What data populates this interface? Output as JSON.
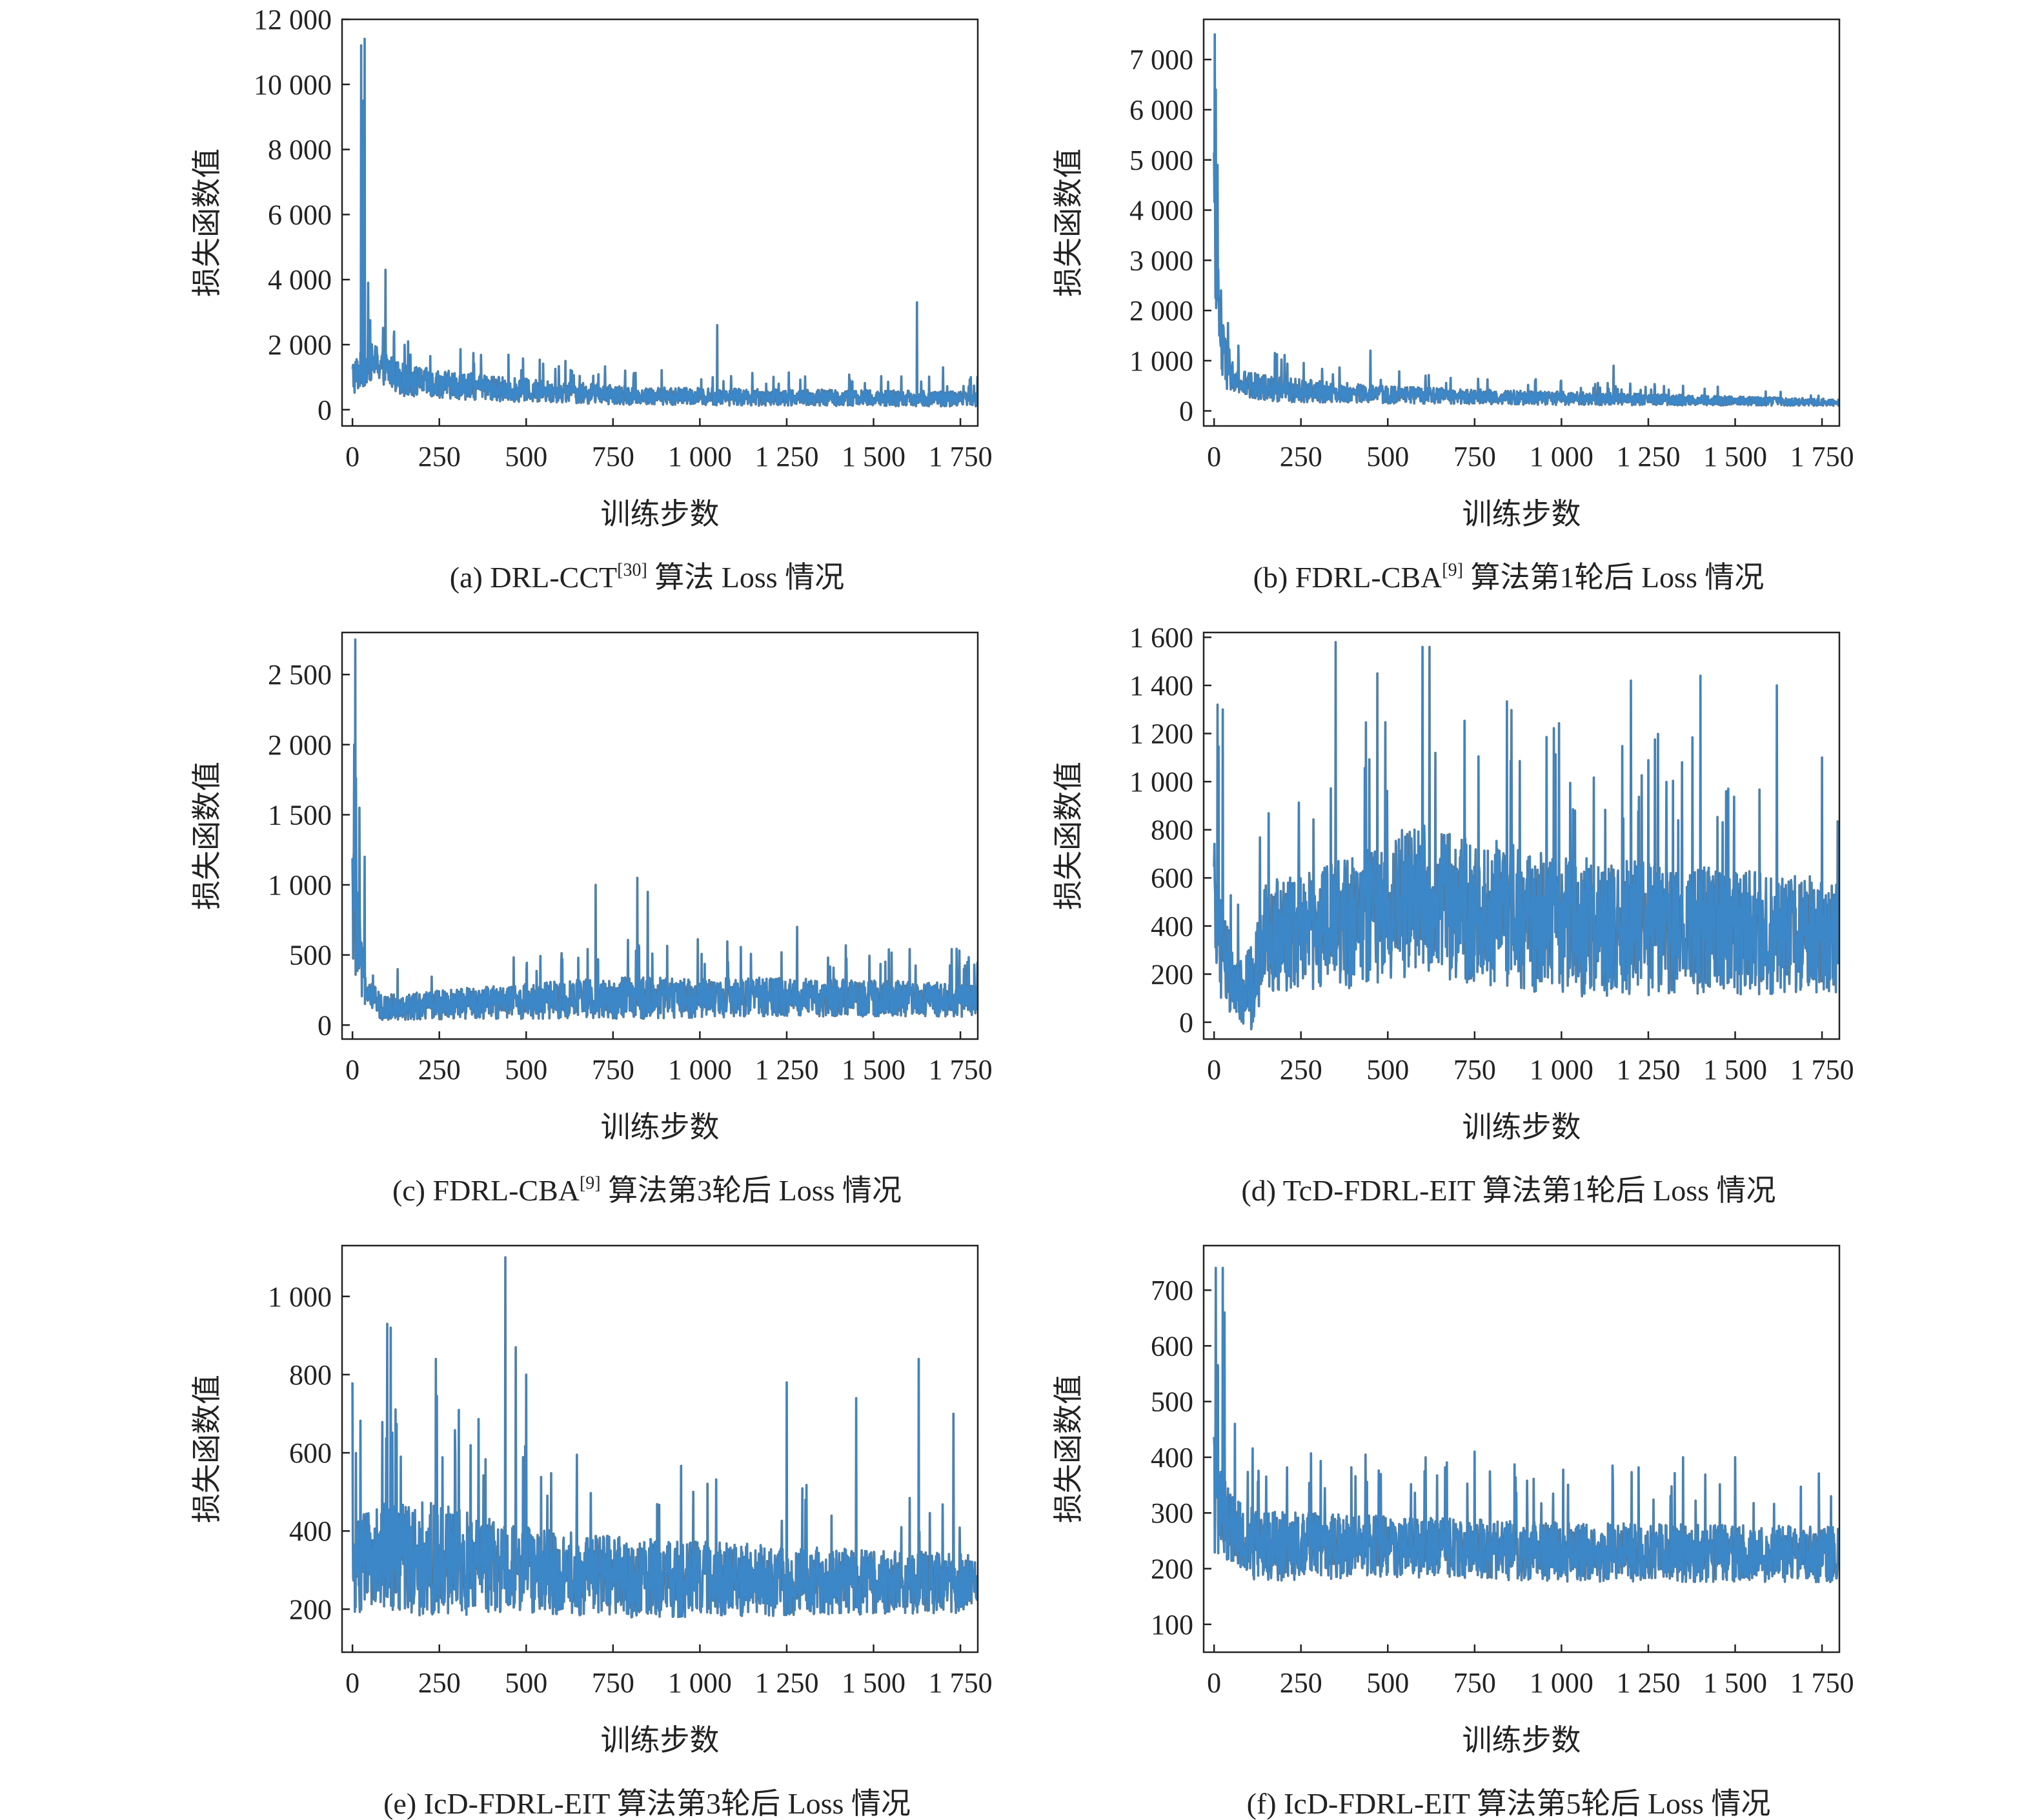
{
  "chart_data": [
    {
      "id": "a",
      "type": "line",
      "caption_pre": "(a) DRL-CCT",
      "caption_ref": "[30]",
      "caption_post": " 算法 Loss 情况",
      "xlabel": "训练步数",
      "ylabel": "损失函数值",
      "xlim": [
        -30,
        1800
      ],
      "ylim": [
        -500,
        12000
      ],
      "xticks": [
        0,
        250,
        500,
        750,
        1000,
        1250,
        1500,
        1750
      ],
      "xtick_labels": [
        "0",
        "250",
        "500",
        "750",
        "1 000",
        "1 250",
        "1 500",
        "1 750"
      ],
      "yticks": [
        0,
        2000,
        4000,
        6000,
        8000,
        10000,
        12000
      ],
      "ytick_labels": [
        "0",
        "2 000",
        "4 000",
        "6 000",
        "8 000",
        "10 000",
        "12 000"
      ],
      "series": [
        {
          "color": "#3b87c8",
          "n_steps": 1800,
          "baseline": [
            [
              0,
              1000
            ],
            [
              60,
              1500
            ],
            [
              150,
              900
            ],
            [
              400,
              650
            ],
            [
              800,
              430
            ],
            [
              1200,
              380
            ],
            [
              1800,
              330
            ]
          ],
          "noise": [
            [
              0,
              600
            ],
            [
              200,
              450
            ],
            [
              800,
              280
            ],
            [
              1800,
              230
            ]
          ],
          "spikes": [
            [
              25,
              11200
            ],
            [
              35,
              11400
            ],
            [
              30,
              9500
            ],
            [
              45,
              3900
            ],
            [
              95,
              4300
            ],
            [
              120,
              2400
            ],
            [
              160,
              2100
            ],
            [
              1050,
              2600
            ],
            [
              1625,
              3300
            ],
            [
              1700,
              1300
            ],
            [
              1780,
              1000
            ]
          ]
        }
      ]
    },
    {
      "id": "b",
      "type": "line",
      "caption_pre": "(b) FDRL-CBA",
      "caption_ref": "[9]",
      "caption_post": " 算法第1轮后 Loss 情况",
      "xlabel": "训练步数",
      "ylabel": "损失函数值",
      "xlim": [
        -30,
        1800
      ],
      "ylim": [
        -300,
        7800
      ],
      "xticks": [
        0,
        250,
        500,
        750,
        1000,
        1250,
        1500,
        1750
      ],
      "xtick_labels": [
        "0",
        "250",
        "500",
        "750",
        "1 000",
        "1 250",
        "1 500",
        "1 750"
      ],
      "yticks": [
        0,
        1000,
        2000,
        3000,
        4000,
        5000,
        6000,
        7000
      ],
      "ytick_labels": [
        "0",
        "1 000",
        "2 000",
        "3 000",
        "4 000",
        "5 000",
        "6 000",
        "7 000"
      ],
      "series": [
        {
          "color": "#3b87c8",
          "n_steps": 1800,
          "baseline": [
            [
              0,
              3500
            ],
            [
              20,
              1200
            ],
            [
              60,
              550
            ],
            [
              200,
              420
            ],
            [
              500,
              320
            ],
            [
              1000,
              250
            ],
            [
              1800,
              170
            ]
          ],
          "noise": [
            [
              0,
              900
            ],
            [
              60,
              280
            ],
            [
              500,
              170
            ],
            [
              1800,
              70
            ]
          ],
          "spikes": [
            [
              2,
              7500
            ],
            [
              5,
              6400
            ],
            [
              10,
              4900
            ],
            [
              20,
              2400
            ],
            [
              40,
              1750
            ],
            [
              70,
              1300
            ],
            [
              450,
              1200
            ],
            [
              1150,
              900
            ],
            [
              1350,
              500
            ]
          ]
        }
      ]
    },
    {
      "id": "c",
      "type": "line",
      "caption_pre": "(c) FDRL-CBA",
      "caption_ref": "[9]",
      "caption_post": " 算法第3轮后 Loss 情况",
      "xlabel": "训练步数",
      "ylabel": "损失函数值",
      "xlim": [
        -30,
        1800
      ],
      "ylim": [
        -100,
        2800
      ],
      "xticks": [
        0,
        250,
        500,
        750,
        1000,
        1250,
        1500,
        1750
      ],
      "xtick_labels": [
        "0",
        "250",
        "500",
        "750",
        "1 000",
        "1 250",
        "1 500",
        "1 750"
      ],
      "yticks": [
        0,
        500,
        1000,
        1500,
        2000,
        2500
      ],
      "ytick_labels": [
        "0",
        "500",
        "1 000",
        "1 500",
        "2 000",
        "2 500"
      ],
      "series": [
        {
          "color": "#3b87c8",
          "n_steps": 1800,
          "baseline": [
            [
              0,
              900
            ],
            [
              30,
              300
            ],
            [
              80,
              130
            ],
            [
              300,
              150
            ],
            [
              700,
              190
            ],
            [
              1200,
              200
            ],
            [
              1800,
              180
            ]
          ],
          "noise": [
            [
              0,
              500
            ],
            [
              40,
              90
            ],
            [
              300,
              110
            ],
            [
              800,
              150
            ],
            [
              1800,
              120
            ]
          ],
          "spikes": [
            [
              8,
              2750
            ],
            [
              5,
              2000
            ],
            [
              20,
              1550
            ],
            [
              35,
              1200
            ],
            [
              700,
              1000
            ],
            [
              820,
              1050
            ],
            [
              850,
              950
            ],
            [
              1280,
              700
            ],
            [
              1760,
              400
            ]
          ]
        }
      ]
    },
    {
      "id": "d",
      "type": "line",
      "caption_pre": "(d) TcD-FDRL-EIT 算法第1轮后 Loss 情况",
      "caption_ref": "",
      "caption_post": "",
      "xlabel": "训练步数",
      "ylabel": "损失函数值",
      "xlim": [
        -30,
        1800
      ],
      "ylim": [
        -70,
        1620
      ],
      "xticks": [
        0,
        250,
        500,
        750,
        1000,
        1250,
        1500,
        1750
      ],
      "xtick_labels": [
        "0",
        "250",
        "500",
        "750",
        "1 000",
        "1 250",
        "1 500",
        "1 750"
      ],
      "yticks": [
        0,
        200,
        400,
        600,
        800,
        1000,
        1200,
        1400,
        1600
      ],
      "ytick_labels": [
        "0",
        "200",
        "400",
        "600",
        "800",
        "1 000",
        "1 200",
        "1 400",
        "1 600"
      ],
      "series": [
        {
          "color": "#3b87c8",
          "n_steps": 1800,
          "baseline": [
            [
              0,
              450
            ],
            [
              60,
              120
            ],
            [
              110,
              150
            ],
            [
              150,
              350
            ],
            [
              400,
              420
            ],
            [
              600,
              520
            ],
            [
              700,
              480
            ],
            [
              1000,
              400
            ],
            [
              1800,
              360
            ]
          ],
          "noise": [
            [
              0,
              300
            ],
            [
              60,
              120
            ],
            [
              150,
              230
            ],
            [
              600,
              320
            ],
            [
              1800,
              240
            ]
          ],
          "spikes": [
            [
              10,
              1320
            ],
            [
              25,
              1300
            ],
            [
              350,
              1580
            ],
            [
              470,
              1450
            ],
            [
              600,
              1560
            ],
            [
              620,
              1560
            ],
            [
              1200,
              1420
            ],
            [
              1400,
              1440
            ],
            [
              1620,
              1400
            ],
            [
              1750,
              1100
            ]
          ]
        }
      ]
    },
    {
      "id": "e",
      "type": "line",
      "caption_pre": "(e) IcD-FDRL-EIT 算法第3轮后 Loss 情况",
      "caption_ref": "",
      "caption_post": "",
      "xlabel": "训练步数",
      "ylabel": "损失函数值",
      "xlim": [
        -30,
        1800
      ],
      "ylim": [
        90,
        1130
      ],
      "xticks": [
        0,
        250,
        500,
        750,
        1000,
        1250,
        1500,
        1750
      ],
      "xtick_labels": [
        "0",
        "250",
        "500",
        "750",
        "1 000",
        "1 250",
        "1 500",
        "1 750"
      ],
      "yticks": [
        200,
        400,
        600,
        800,
        1000
      ],
      "ytick_labels": [
        "200",
        "400",
        "600",
        "800",
        "1 000"
      ],
      "series": [
        {
          "color": "#3b87c8",
          "n_steps": 1800,
          "baseline": [
            [
              0,
              300
            ],
            [
              100,
              340
            ],
            [
              300,
              320
            ],
            [
              500,
              300
            ],
            [
              800,
              280
            ],
            [
              1800,
              265
            ]
          ],
          "noise": [
            [
              0,
              130
            ],
            [
              200,
              150
            ],
            [
              500,
              110
            ],
            [
              1800,
              75
            ]
          ],
          "spikes": [
            [
              0,
              780
            ],
            [
              100,
              930
            ],
            [
              110,
              920
            ],
            [
              240,
              840
            ],
            [
              440,
              1100
            ],
            [
              470,
              870
            ],
            [
              500,
              800
            ],
            [
              1250,
              780
            ],
            [
              1450,
              740
            ],
            [
              1630,
              840
            ],
            [
              1730,
              700
            ]
          ]
        }
      ]
    },
    {
      "id": "f",
      "type": "line",
      "caption_pre": "(f) IcD-FDRL-EIT 算法第5轮后 Loss 情况",
      "caption_ref": "",
      "caption_post": "",
      "xlabel": "训练步数",
      "ylabel": "损失函数值",
      "xlim": [
        -30,
        1800
      ],
      "ylim": [
        50,
        780
      ],
      "xticks": [
        0,
        250,
        500,
        750,
        1000,
        1250,
        1500,
        1750
      ],
      "xtick_labels": [
        "0",
        "250",
        "500",
        "750",
        "1 000",
        "1 250",
        "1 500",
        "1 750"
      ],
      "yticks": [
        100,
        200,
        300,
        400,
        500,
        600,
        700
      ],
      "ytick_labels": [
        "100",
        "200",
        "300",
        "400",
        "500",
        "600",
        "700"
      ],
      "series": [
        {
          "color": "#3b87c8",
          "n_steps": 1800,
          "baseline": [
            [
              0,
              340
            ],
            [
              40,
              280
            ],
            [
              120,
              240
            ],
            [
              500,
              240
            ],
            [
              1000,
              230
            ],
            [
              1800,
              225
            ]
          ],
          "noise": [
            [
              0,
              120
            ],
            [
              40,
              65
            ],
            [
              500,
              55
            ],
            [
              1800,
              50
            ]
          ],
          "spikes": [
            [
              5,
              740
            ],
            [
              25,
              740
            ],
            [
              30,
              660
            ],
            [
              10,
              500
            ],
            [
              60,
              460
            ],
            [
              750,
              410
            ],
            [
              1350,
              400
            ],
            [
              1500,
              400
            ]
          ]
        }
      ]
    }
  ]
}
